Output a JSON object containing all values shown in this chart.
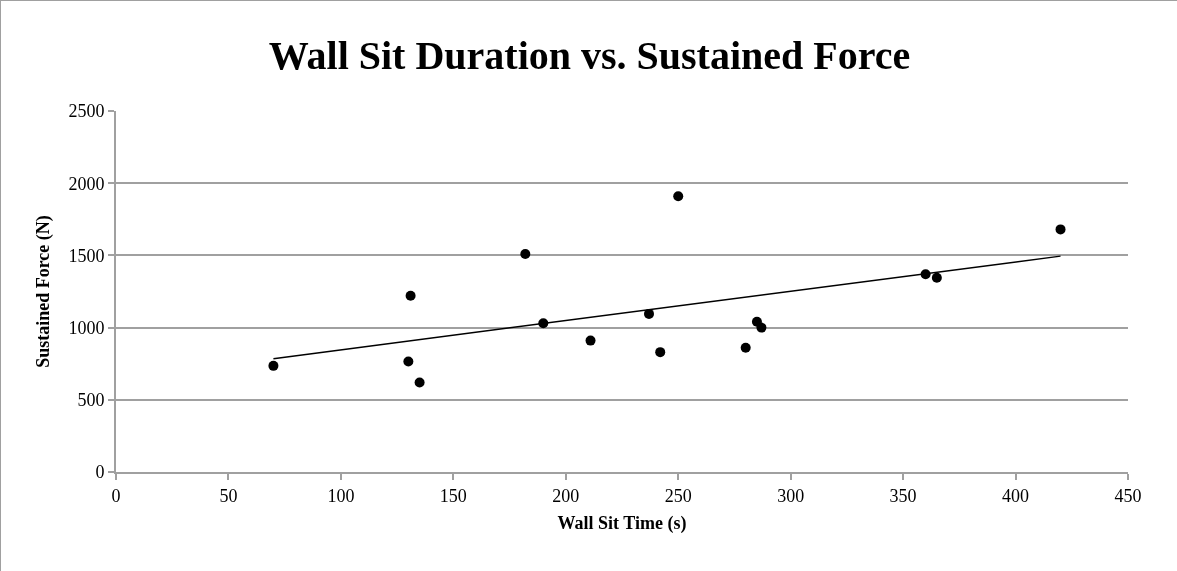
{
  "chart_data": {
    "type": "scatter",
    "title": "Wall Sit Duration vs. Sustained Force",
    "xlabel": "Wall Sit Time (s)",
    "ylabel": "Sustained Force (N)",
    "series": [
      {
        "color": "#000000",
        "marker": "circle",
        "x": [
          70,
          130,
          131,
          135,
          182,
          190,
          211,
          237,
          242,
          250,
          280,
          285,
          287,
          360,
          365,
          420
        ],
        "values": [
          735,
          765,
          1220,
          620,
          1510,
          1030,
          910,
          1095,
          830,
          1910,
          860,
          1040,
          1000,
          1370,
          1345,
          1680
        ]
      },
      {
        "type": "line",
        "color": "#000000",
        "marker": "none",
        "line_style": "solid",
        "x": [
          70,
          420
        ],
        "values": [
          785,
          1495
        ]
      }
    ],
    "xlim": [
      0,
      450
    ],
    "xticks": [
      0,
      50,
      100,
      150,
      200,
      250,
      300,
      350,
      400,
      450
    ],
    "ylim": [
      0,
      2500
    ],
    "yticks": [
      0,
      500,
      1000,
      1500,
      2000,
      2500
    ],
    "grid": "y"
  }
}
